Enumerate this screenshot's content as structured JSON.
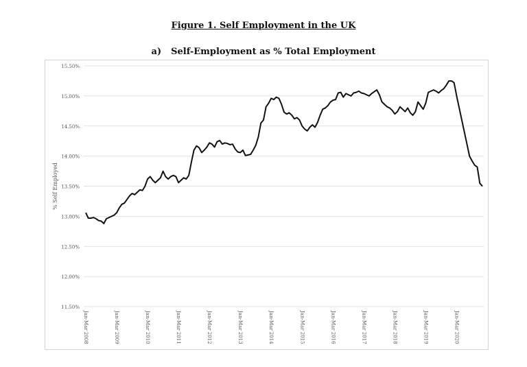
{
  "figure_title": "Figure 1. Self Employment in the UK",
  "panel_label": "a)",
  "panel_title": "Self-Employment as % Total Employment",
  "chart_data": {
    "type": "line",
    "title": "Self-Employment as % Total Employment",
    "ylabel": "% Self Employed",
    "xlabel": "",
    "ylim": [
      11.5,
      15.5
    ],
    "yticks": [
      "11.50%",
      "12.00%",
      "12.50%",
      "13.00%",
      "13.50%",
      "14.00%",
      "14.50%",
      "15.00%",
      "15.50%"
    ],
    "grid": true,
    "x_tick_labels": [
      "Jan-Mar 2008",
      "Jan-Mar 2009",
      "Jan-Mar 2010",
      "Jan-Mar 2011",
      "Jan-Mar 2012",
      "Jan-Mar 2013",
      "Jan-Mar 2014",
      "Jan-Mar 2015",
      "Jan-Mar 2016",
      "Jan-Mar 2017",
      "Jan-Mar 2018",
      "Jan-Mar 2019",
      "Jan-Mar 2020"
    ],
    "series": [
      {
        "color": "#111111",
        "x_start": "Jan-Mar 2008",
        "frequency": "monthly rolling quarter",
        "values": [
          13.06,
          12.97,
          12.97,
          12.98,
          12.96,
          12.93,
          12.92,
          12.88,
          12.96,
          12.98,
          13.0,
          13.02,
          13.06,
          13.14,
          13.2,
          13.22,
          13.28,
          13.34,
          13.38,
          13.36,
          13.4,
          13.44,
          13.43,
          13.5,
          13.62,
          13.66,
          13.6,
          13.56,
          13.6,
          13.64,
          13.75,
          13.66,
          13.62,
          13.66,
          13.68,
          13.66,
          13.56,
          13.6,
          13.64,
          13.62,
          13.68,
          13.9,
          14.1,
          14.17,
          14.14,
          14.06,
          14.1,
          14.15,
          14.22,
          14.2,
          14.15,
          14.24,
          14.26,
          14.2,
          14.22,
          14.21,
          14.19,
          14.2,
          14.12,
          14.07,
          14.06,
          14.1,
          14.01,
          14.02,
          14.03,
          14.1,
          14.18,
          14.32,
          14.55,
          14.6,
          14.82,
          14.88,
          14.96,
          14.94,
          14.98,
          14.96,
          14.86,
          14.73,
          14.7,
          14.72,
          14.68,
          14.62,
          14.64,
          14.6,
          14.5,
          14.45,
          14.42,
          14.48,
          14.52,
          14.48,
          14.56,
          14.68,
          14.78,
          14.8,
          14.84,
          14.9,
          14.93,
          14.94,
          15.05,
          15.06,
          14.98,
          15.04,
          15.02,
          15.0,
          15.05,
          15.06,
          15.08,
          15.05,
          15.04,
          15.02,
          15.0,
          15.04,
          15.07,
          15.1,
          15.02,
          14.9,
          14.86,
          14.82,
          14.8,
          14.76,
          14.7,
          14.74,
          14.82,
          14.78,
          14.74,
          14.8,
          14.72,
          14.68,
          14.74,
          14.9,
          14.84,
          14.78,
          14.88,
          15.06,
          15.08,
          15.1,
          15.08,
          15.05,
          15.09,
          15.12,
          15.18,
          15.25,
          15.25,
          15.22,
          15.0,
          14.8,
          14.6,
          14.4,
          14.2,
          14.0,
          13.92,
          13.85,
          13.82,
          13.55,
          13.5
        ]
      }
    ]
  }
}
